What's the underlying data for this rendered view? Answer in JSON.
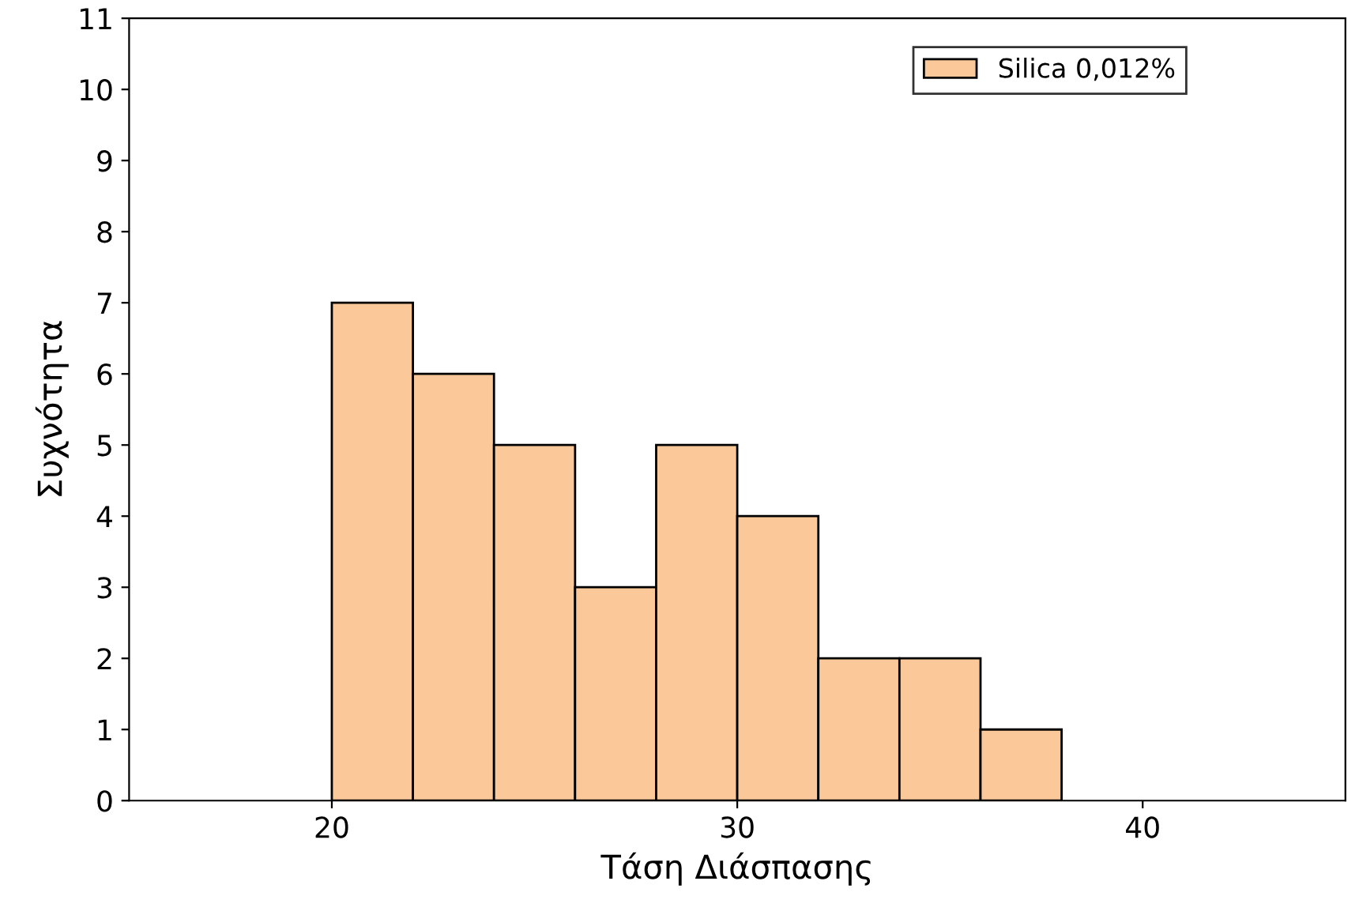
{
  "chart_data": {
    "type": "histogram",
    "xlabel": "Τάση Διάσπασης",
    "ylabel": "Συχνότητα",
    "bins": [
      20,
      22,
      24,
      26,
      28,
      30,
      32,
      34,
      36,
      38
    ],
    "series": [
      {
        "name": "Silica 0,012%",
        "color": "#fbc899",
        "values": [
          7,
          6,
          5,
          3,
          5,
          4,
          2,
          2,
          1
        ]
      }
    ],
    "xlim": [
      15,
      45
    ],
    "xticks": [
      20,
      30,
      40
    ],
    "ylim": [
      0,
      11
    ],
    "yticks": [
      0,
      1,
      2,
      3,
      4,
      5,
      6,
      7,
      8,
      9,
      10,
      11
    ],
    "legend": "top right",
    "grid": false
  }
}
